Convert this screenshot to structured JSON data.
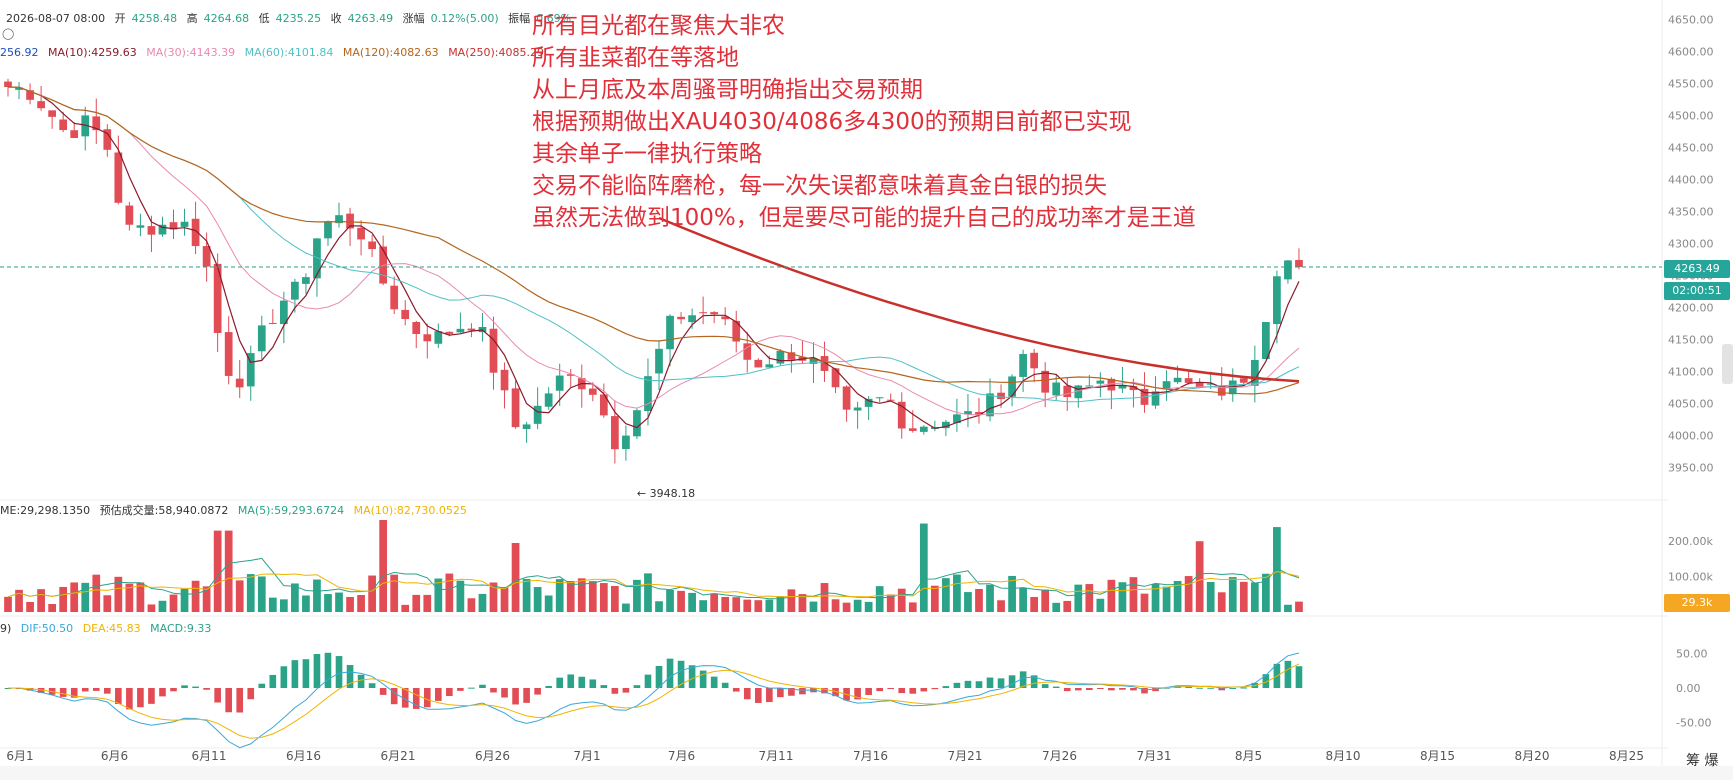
{
  "header": {
    "datetime": "2026-08-07 08:00",
    "open_label": "开",
    "open": "4258.48",
    "high_label": "高",
    "high": "4264.68",
    "low_label": "低",
    "low": "4235.25",
    "close_label": "收",
    "close": "4263.49",
    "change_label": "涨幅",
    "change": "0.12%(5.00)",
    "amp_label": "振幅",
    "amp": "0.69%"
  },
  "ma_row": {
    "cut": "256.92",
    "ma10": "MA(10):4259.63",
    "ma30": "MA(30):4143.39",
    "ma60": "MA(60):4101.84",
    "ma120": "MA(120):4082.63",
    "ma250": "MA(250):4085.29"
  },
  "vol_row": {
    "vol": "ME:29,298.1350",
    "est": "预估成交量:58,940.0872",
    "ma5": "MA(5):59,293.6724",
    "ma10": "MA(10):82,730.0525"
  },
  "macd_row": {
    "prefix": "9)",
    "dif": "DIF:50.50",
    "dea": "DEA:45.83",
    "macd": "MACD:9.33"
  },
  "annotation": [
    "所有目光都在聚焦大非农",
    "所有韭菜都在等落地",
    "从上月底及本周骚哥明确指出交易预期",
    "根据预期做出XAU4030/4086多4300的预期目前都已实现",
    "其余单子一律执行策略",
    "交易不能临阵磨枪，每一次失误都意味着真金白银的损失",
    "虽然无法做到100%，但是要尽可能的提升自己的成功率才是王道"
  ],
  "price_tag": "4263.49",
  "countdown_tag": "02:00:51",
  "vol_tag": "29.3k",
  "low_marker": "← 3948.18",
  "corner_text": "筹 爆",
  "eye_icon": "eye-icon",
  "colors": {
    "up": "#2aa388",
    "down": "#e24c55",
    "ma10": "#8b1a2b",
    "ma30": "#e98ab0",
    "ma60": "#4fc1c4",
    "ma120": "#b5651d",
    "ma250": "#c9302c",
    "annotation": "#e0303a",
    "dif": "#3aa8d8",
    "dea": "#f0b400"
  },
  "chart_data": [
    {
      "type": "candlestick",
      "title": "",
      "x_ticks": [
        "6月1",
        "6月6",
        "6月11",
        "6月16",
        "6月21",
        "6月26",
        "7月1",
        "7月6",
        "7月11",
        "7月16",
        "7月21",
        "7月26",
        "7月31",
        "8月5",
        "8月10",
        "8月15",
        "8月20",
        "8月25"
      ],
      "y_ticks": [
        "4650.00",
        "4600.00",
        "4550.00",
        "4500.00",
        "4450.00",
        "4400.00",
        "4350.00",
        "4300.00",
        "4250.00",
        "4200.00",
        "4150.00",
        "4100.00",
        "4050.00",
        "4000.00",
        "3950.00"
      ],
      "ylim": [
        3915,
        4665
      ],
      "close_anchors": [
        {
          "day": 0,
          "v": 4545
        },
        {
          "day": 1,
          "v": 4540
        },
        {
          "day": 2,
          "v": 4510
        },
        {
          "day": 3,
          "v": 4470
        },
        {
          "day": 4,
          "v": 4490
        },
        {
          "day": 5,
          "v": 4460
        },
        {
          "day": 6,
          "v": 4320
        },
        {
          "day": 7,
          "v": 4325
        },
        {
          "day": 8,
          "v": 4330
        },
        {
          "day": 9,
          "v": 4330
        },
        {
          "day": 10,
          "v": 4290
        },
        {
          "day": 11,
          "v": 4110
        },
        {
          "day": 12,
          "v": 4085
        },
        {
          "day": 13,
          "v": 4160
        },
        {
          "day": 14,
          "v": 4210
        },
        {
          "day": 15,
          "v": 4235
        },
        {
          "day": 16,
          "v": 4330
        },
        {
          "day": 17,
          "v": 4340
        },
        {
          "day": 18,
          "v": 4320
        },
        {
          "day": 19,
          "v": 4250
        },
        {
          "day": 20,
          "v": 4190
        },
        {
          "day": 21,
          "v": 4160
        },
        {
          "day": 22,
          "v": 4155
        },
        {
          "day": 23,
          "v": 4170
        },
        {
          "day": 24,
          "v": 4180
        },
        {
          "day": 25,
          "v": 4090
        },
        {
          "day": 26,
          "v": 4010
        },
        {
          "day": 27,
          "v": 4040
        },
        {
          "day": 28,
          "v": 4085
        },
        {
          "day": 29,
          "v": 4090
        },
        {
          "day": 30,
          "v": 4070
        },
        {
          "day": 31,
          "v": 3990
        },
        {
          "day": 32,
          "v": 4030
        },
        {
          "day": 33,
          "v": 4110
        },
        {
          "day": 34,
          "v": 4185
        },
        {
          "day": 35,
          "v": 4190
        },
        {
          "day": 36,
          "v": 4195
        },
        {
          "day": 37,
          "v": 4160
        },
        {
          "day": 38,
          "v": 4110
        },
        {
          "day": 39,
          "v": 4120
        },
        {
          "day": 40,
          "v": 4130
        },
        {
          "day": 41,
          "v": 4120
        },
        {
          "day": 42,
          "v": 4080
        },
        {
          "day": 43,
          "v": 4020
        },
        {
          "day": 44,
          "v": 4050
        },
        {
          "day": 45,
          "v": 4060
        },
        {
          "day": 46,
          "v": 4010
        },
        {
          "day": 47,
          "v": 4020
        },
        {
          "day": 48,
          "v": 4025
        },
        {
          "day": 49,
          "v": 4030
        },
        {
          "day": 50,
          "v": 4045
        },
        {
          "day": 51,
          "v": 4080
        },
        {
          "day": 52,
          "v": 4130
        },
        {
          "day": 53,
          "v": 4080
        },
        {
          "day": 54,
          "v": 4060
        },
        {
          "day": 55,
          "v": 4070
        },
        {
          "day": 56,
          "v": 4090
        },
        {
          "day": 57,
          "v": 4070
        },
        {
          "day": 58,
          "v": 4050
        },
        {
          "day": 59,
          "v": 4100
        },
        {
          "day": 60,
          "v": 4080
        },
        {
          "day": 61,
          "v": 4070
        },
        {
          "day": 62,
          "v": 4070
        },
        {
          "day": 63,
          "v": 4080
        },
        {
          "day": 64,
          "v": 4150
        },
        {
          "day": 65,
          "v": 4280
        },
        {
          "day": 66,
          "v": 4263
        }
      ],
      "low_marker_value": 3948.18,
      "last_price": 4263.49,
      "moving_averages": [
        {
          "name": "MA(10)",
          "last": 4259.63
        },
        {
          "name": "MA(30)",
          "last": 4143.39
        },
        {
          "name": "MA(60)",
          "last": 4101.84
        },
        {
          "name": "MA(120)",
          "last": 4082.63
        },
        {
          "name": "MA(250)",
          "last": 4085.29
        }
      ],
      "trend_line": {
        "from": {
          "day": 33,
          "v": 4340
        },
        "to": {
          "day": 66,
          "v": 4085
        }
      }
    },
    {
      "type": "bar",
      "title": "",
      "y_ticks": [
        "200.00k",
        "100.00k"
      ],
      "ylim": [
        0,
        260000
      ],
      "last_volume": "29.3k",
      "volume_peaks": [
        {
          "day": 11,
          "v": 230000
        },
        {
          "day": 19,
          "v": 260000
        },
        {
          "day": 26,
          "v": 195000
        },
        {
          "day": 47,
          "v": 250000
        },
        {
          "day": 61,
          "v": 200000
        },
        {
          "day": 65,
          "v": 240000
        }
      ]
    },
    {
      "type": "bar",
      "title": "",
      "y_ticks": [
        "50.00",
        "0.00",
        "-50.00"
      ],
      "ylim": [
        -75,
        75
      ],
      "dif": 50.5,
      "dea": 45.83,
      "macd": 9.33
    }
  ]
}
